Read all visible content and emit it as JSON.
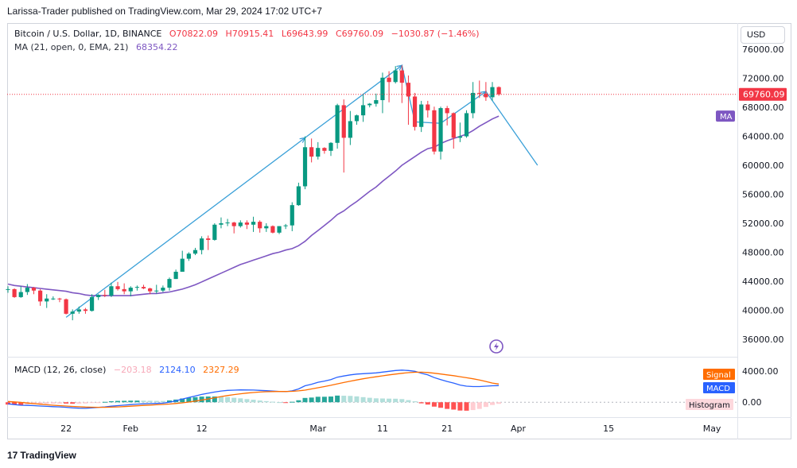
{
  "credit": "Larissa-Trader published on TradingView.com, Mar 29, 2024 17:02 UTC+7",
  "legend": {
    "symbol": "Bitcoin / U.S. Dollar, 1D, BINANCE",
    "open": "O70822.09",
    "high": "H70915.41",
    "low": "L69643.99",
    "close": "C69760.09",
    "change": "−1030.87 (−1.46%)",
    "ma_label": "MA (21, open, 0, EMA, 21)",
    "ma_value": "68354.22",
    "macd_label": "MACD (12, 26, close)",
    "macd_hist_value": "−203.18",
    "macd_value": "2124.10",
    "signal_value": "2327.29"
  },
  "currency": "USD",
  "price_axis": [
    "76000.00",
    "72000.00",
    "68000.00",
    "64000.00",
    "60000.00",
    "56000.00",
    "52000.00",
    "48000.00",
    "44000.00",
    "40000.00",
    "36000.00"
  ],
  "last_price_label": "69760.09",
  "ma_badge": "MA",
  "macd_axis": [
    "4000.00",
    "0.00"
  ],
  "macd_badges": {
    "signal": "Signal",
    "macd": "MACD",
    "histogram": "Histogram"
  },
  "time_axis": [
    "22",
    "Feb",
    "12",
    "Mar",
    "11",
    "21",
    "Apr",
    "15",
    "May"
  ],
  "footer": "TradingView",
  "colors": {
    "up": "#089981",
    "down": "#f23645",
    "ma": "#7e57c2",
    "macd": "#2962ff",
    "signal": "#ff6d00",
    "arrow": "#3aa0d8",
    "last_price": "#f23645"
  },
  "chart_data": {
    "type": "candlestick",
    "title": "Bitcoin / U.S. Dollar, 1D, BINANCE",
    "x": [
      "Jan 13",
      "Jan 14",
      "Jan 15",
      "Jan 16",
      "Jan 17",
      "Jan 18",
      "Jan 19",
      "Jan 20",
      "Jan 21",
      "Jan 22",
      "Jan 23",
      "Jan 24",
      "Jan 25",
      "Jan 26",
      "Jan 27",
      "Jan 28",
      "Jan 29",
      "Jan 30",
      "Jan 31",
      "Feb 1",
      "Feb 2",
      "Feb 3",
      "Feb 4",
      "Feb 5",
      "Feb 6",
      "Feb 7",
      "Feb 8",
      "Feb 9",
      "Feb 10",
      "Feb 11",
      "Feb 12",
      "Feb 13",
      "Feb 14",
      "Feb 15",
      "Feb 16",
      "Feb 17",
      "Feb 18",
      "Feb 19",
      "Feb 20",
      "Feb 21",
      "Feb 22",
      "Feb 23",
      "Feb 24",
      "Feb 25",
      "Feb 26",
      "Feb 27",
      "Feb 28",
      "Feb 29",
      "Mar 1",
      "Mar 2",
      "Mar 3",
      "Mar 4",
      "Mar 5",
      "Mar 6",
      "Mar 7",
      "Mar 8",
      "Mar 9",
      "Mar 10",
      "Mar 11",
      "Mar 12",
      "Mar 13",
      "Mar 14",
      "Mar 15",
      "Mar 16",
      "Mar 17",
      "Mar 18",
      "Mar 19",
      "Mar 20",
      "Mar 21",
      "Mar 22",
      "Mar 23",
      "Mar 24",
      "Mar 25",
      "Mar 26",
      "Mar 27",
      "Mar 28",
      "Mar 29"
    ],
    "ohlc": [
      [
        42800,
        43300,
        42400,
        42900
      ],
      [
        42900,
        43000,
        41700,
        41800
      ],
      [
        41800,
        43300,
        41700,
        42500
      ],
      [
        42500,
        43600,
        42100,
        43100
      ],
      [
        43100,
        43200,
        42200,
        42700
      ],
      [
        42700,
        42900,
        40600,
        41200
      ],
      [
        41200,
        42200,
        40300,
        41600
      ],
      [
        41600,
        41900,
        41400,
        41600
      ],
      [
        41600,
        41700,
        41100,
        41500
      ],
      [
        41500,
        41600,
        39400,
        39500
      ],
      [
        39500,
        40100,
        38600,
        39800
      ],
      [
        39800,
        40500,
        39500,
        40100
      ],
      [
        40100,
        40300,
        39500,
        39900
      ],
      [
        39900,
        42200,
        39800,
        41800
      ],
      [
        41800,
        42200,
        41400,
        42100
      ],
      [
        42100,
        42800,
        41800,
        42000
      ],
      [
        42000,
        43800,
        41800,
        43300
      ],
      [
        43300,
        43900,
        42700,
        42900
      ],
      [
        42900,
        43700,
        42200,
        42600
      ],
      [
        42600,
        43300,
        41900,
        43100
      ],
      [
        43100,
        43400,
        42700,
        43200
      ],
      [
        43200,
        43500,
        42900,
        43000
      ],
      [
        43000,
        43100,
        42200,
        42600
      ],
      [
        42600,
        43500,
        42300,
        42700
      ],
      [
        42700,
        43400,
        42500,
        43100
      ],
      [
        43100,
        44500,
        42700,
        44300
      ],
      [
        44300,
        45600,
        44300,
        45300
      ],
      [
        45300,
        48200,
        45300,
        47100
      ],
      [
        47100,
        48000,
        46800,
        47800
      ],
      [
        47800,
        48600,
        47600,
        48300
      ],
      [
        48300,
        50200,
        47700,
        49900
      ],
      [
        49900,
        50300,
        48300,
        49700
      ],
      [
        49700,
        52000,
        49600,
        51800
      ],
      [
        51800,
        52800,
        51300,
        52000
      ],
      [
        52000,
        52600,
        51600,
        52100
      ],
      [
        52100,
        52200,
        50600,
        51600
      ],
      [
        51600,
        52400,
        51400,
        52100
      ],
      [
        52100,
        52400,
        51200,
        51800
      ],
      [
        51800,
        52900,
        50800,
        52200
      ],
      [
        52200,
        52400,
        50700,
        51300
      ],
      [
        51300,
        52000,
        50800,
        51600
      ],
      [
        51600,
        51700,
        50600,
        50700
      ],
      [
        50700,
        51600,
        50500,
        51600
      ],
      [
        51600,
        51900,
        51200,
        51700
      ],
      [
        51700,
        54900,
        50900,
        54500
      ],
      [
        54500,
        57600,
        54400,
        57100
      ],
      [
        57100,
        64000,
        56700,
        62500
      ],
      [
        62500,
        63700,
        60400,
        61200
      ],
      [
        61200,
        63200,
        60800,
        62400
      ],
      [
        62400,
        62500,
        61600,
        62000
      ],
      [
        62000,
        63200,
        61300,
        63100
      ],
      [
        63100,
        68500,
        62300,
        68300
      ],
      [
        68300,
        69100,
        59000,
        63800
      ],
      [
        63800,
        67500,
        62800,
        66100
      ],
      [
        66100,
        67000,
        65600,
        66900
      ],
      [
        66900,
        69900,
        66000,
        68300
      ],
      [
        68300,
        68600,
        68000,
        68500
      ],
      [
        68500,
        69900,
        68100,
        69000
      ],
      [
        69000,
        72800,
        67200,
        72100
      ],
      [
        72100,
        73000,
        68700,
        71500
      ],
      [
        71500,
        73700,
        71300,
        73100
      ],
      [
        73100,
        73800,
        68600,
        71400
      ],
      [
        71400,
        72400,
        65600,
        69500
      ],
      [
        69500,
        70000,
        64800,
        65300
      ],
      [
        65300,
        68900,
        64600,
        68400
      ],
      [
        68400,
        68900,
        66600,
        67600
      ],
      [
        67600,
        68100,
        61500,
        61900
      ],
      [
        61900,
        68100,
        60800,
        67900
      ],
      [
        67900,
        68200,
        65500,
        67200
      ],
      [
        67200,
        67300,
        62300,
        63800
      ],
      [
        63800,
        65900,
        63200,
        64000
      ],
      [
        64000,
        67600,
        63800,
        67200
      ],
      [
        67200,
        71500,
        66500,
        70000
      ],
      [
        70000,
        71700,
        69300,
        69900
      ],
      [
        69900,
        71500,
        68900,
        69400
      ],
      [
        69400,
        71500,
        68900,
        70800
      ],
      [
        70800,
        70900,
        69600,
        69800
      ]
    ],
    "ma": {
      "name": "MA (21, open, 0, EMA, 21)",
      "values": [
        43600,
        43400,
        43300,
        43200,
        43100,
        43000,
        42900,
        42800,
        42700,
        42600,
        42400,
        42300,
        42100,
        42000,
        42000,
        42000,
        42000,
        42000,
        42000,
        42000,
        42100,
        42200,
        42300,
        42300,
        42400,
        42500,
        42700,
        42900,
        43200,
        43500,
        43900,
        44300,
        44700,
        45100,
        45500,
        45900,
        46300,
        46600,
        46900,
        47200,
        47500,
        47800,
        48000,
        48300,
        48500,
        48900,
        49500,
        50300,
        51000,
        51700,
        52400,
        53200,
        53700,
        54400,
        55000,
        55700,
        56400,
        57000,
        57800,
        58500,
        59200,
        60000,
        60600,
        61200,
        61800,
        62300,
        62500,
        63000,
        63400,
        63700,
        64000,
        64300,
        64800,
        65400,
        65900,
        66400,
        66800
      ]
    },
    "ylim": [
      34000,
      78000
    ],
    "macd": {
      "label": "MACD (12, 26, close)",
      "macd": [
        -200,
        -300,
        -380,
        -400,
        -430,
        -480,
        -520,
        -560,
        -600,
        -650,
        -720,
        -760,
        -780,
        -720,
        -660,
        -600,
        -500,
        -430,
        -370,
        -300,
        -240,
        -200,
        -170,
        -150,
        -120,
        0,
        180,
        400,
        600,
        800,
        1000,
        1150,
        1300,
        1430,
        1520,
        1550,
        1580,
        1570,
        1560,
        1520,
        1480,
        1430,
        1380,
        1350,
        1450,
        1700,
        2100,
        2300,
        2550,
        2700,
        2900,
        3200,
        3350,
        3500,
        3600,
        3650,
        3700,
        3750,
        3850,
        3950,
        4050,
        4100,
        4050,
        3950,
        3700,
        3500,
        3150,
        2900,
        2650,
        2450,
        2200,
        2050,
        2000,
        2000,
        2050,
        2100,
        2124
      ],
      "signal": [
        100,
        40,
        -20,
        -100,
        -180,
        -250,
        -320,
        -380,
        -430,
        -480,
        -530,
        -580,
        -620,
        -640,
        -650,
        -650,
        -630,
        -600,
        -550,
        -500,
        -450,
        -400,
        -360,
        -320,
        -280,
        -230,
        -160,
        -80,
        20,
        150,
        280,
        420,
        570,
        720,
        860,
        980,
        1080,
        1170,
        1240,
        1300,
        1340,
        1360,
        1370,
        1370,
        1390,
        1450,
        1550,
        1700,
        1850,
        2000,
        2170,
        2350,
        2520,
        2690,
        2850,
        3000,
        3130,
        3250,
        3370,
        3490,
        3600,
        3700,
        3780,
        3830,
        3840,
        3800,
        3710,
        3610,
        3500,
        3390,
        3260,
        3130,
        3000,
        2850,
        2650,
        2450,
        2327
      ],
      "hist": [
        -300,
        -340,
        -360,
        -300,
        -250,
        -230,
        -200,
        -180,
        -170,
        -170,
        -190,
        -180,
        -160,
        -80,
        -10,
        50,
        130,
        170,
        180,
        200,
        210,
        200,
        190,
        170,
        160,
        230,
        340,
        480,
        580,
        650,
        720,
        730,
        730,
        710,
        660,
        570,
        500,
        400,
        320,
        220,
        140,
        70,
        10,
        -20,
        60,
        250,
        550,
        600,
        700,
        700,
        730,
        850,
        830,
        810,
        750,
        650,
        570,
        500,
        480,
        460,
        450,
        400,
        270,
        120,
        -140,
        -300,
        -560,
        -710,
        -850,
        -940,
        -1060,
        -1080,
        -1000,
        -850,
        -600,
        -350,
        -203
      ]
    },
    "macd_ylim": [
      -1600,
      5200
    ],
    "annotations": [
      {
        "type": "arrow",
        "points": [
          [
            "Jan 22",
            39000
          ],
          [
            "Feb 28",
            63800
          ],
          [
            "Mar 14",
            73800
          ],
          [
            "Mar 16",
            66000
          ],
          [
            "Mar 20",
            65800
          ],
          [
            "Mar 27",
            70200
          ],
          [
            "Apr 4",
            60000
          ]
        ]
      }
    ]
  }
}
